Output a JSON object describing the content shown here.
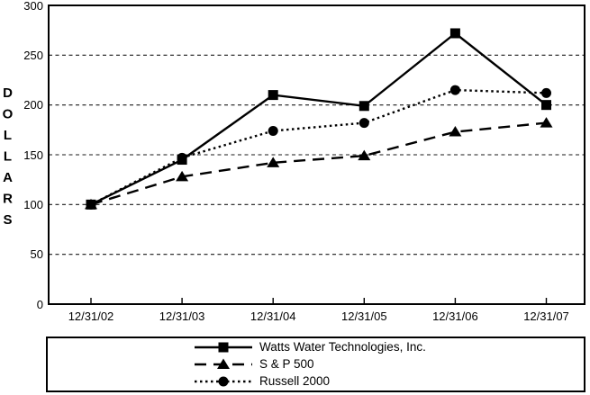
{
  "chart_data": {
    "type": "line",
    "title": "",
    "xlabel": "",
    "ylabel": "DOLLARS",
    "ylim": [
      0,
      300
    ],
    "yticks": [
      0,
      50,
      100,
      150,
      200,
      250,
      300
    ],
    "grid": "horizontal dashed gridlines at 50,100,150,200,250; solid rectangular plot border",
    "legend_position": "boxed panel below plot",
    "categories": [
      "12/31/02",
      "12/31/03",
      "12/31/04",
      "12/31/05",
      "12/31/06",
      "12/31/07"
    ],
    "series": [
      {
        "name": "Watts Water Technologies, Inc.",
        "line": "solid",
        "marker": "square",
        "color": "#000000",
        "values": [
          100,
          145,
          210,
          199,
          272,
          200
        ]
      },
      {
        "name": "S & P 500",
        "line": "dashed",
        "marker": "triangle",
        "color": "#000000",
        "values": [
          100,
          128,
          142,
          149,
          173,
          182
        ]
      },
      {
        "name": "Russell 2000",
        "line": "dotted",
        "marker": "circle",
        "color": "#000000",
        "values": [
          100,
          147,
          174,
          182,
          215,
          212
        ]
      }
    ]
  },
  "colors": {
    "ink": "#000000",
    "grid": "#1a1a1a",
    "background": "#ffffff"
  }
}
